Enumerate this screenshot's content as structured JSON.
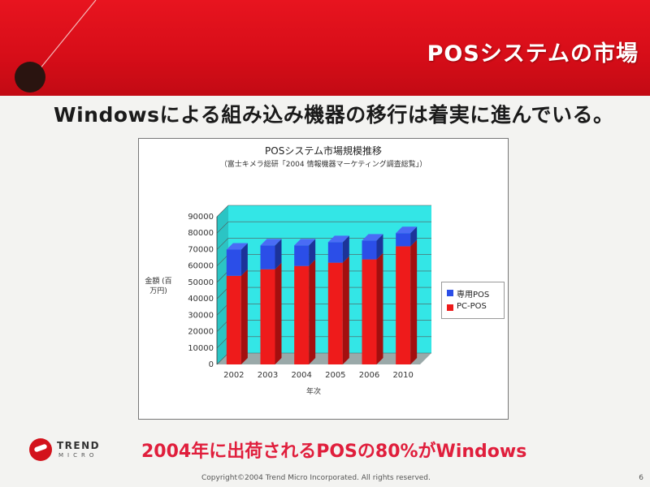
{
  "slide": {
    "title": "POSシステムの市場",
    "subtitle": "Windowsによる組み込み機器の移行は着実に進んでいる。",
    "tagline": "2004年に出荷されるPOSの80%がWindows",
    "copyright": "Copyright©2004 Trend Micro Incorporated. All rights reserved.",
    "page_number": "6",
    "logo": {
      "top": "TREND",
      "bottom": "MICRO"
    }
  },
  "colors": {
    "header_red": "#d60d18",
    "chart_background": "#33e6e6",
    "pc_pos": "#ee1b1b",
    "dedicated_pos": "#2b4ee8",
    "tagline": "#e01e3c"
  },
  "chart_data": {
    "type": "bar",
    "stacked": true,
    "title": "POSシステム市場規模推移",
    "subtitle": "（富士キメラ総研「2004 情報機器マーケティング調査総覧」）",
    "ylabel": "金額 (百万円)",
    "xlabel": "年次",
    "categories": [
      "2002",
      "2003",
      "2004",
      "2005",
      "2006",
      "2010"
    ],
    "ylim": [
      0,
      90000
    ],
    "yticks": [
      0,
      10000,
      20000,
      30000,
      40000,
      50000,
      60000,
      70000,
      80000,
      90000
    ],
    "series": [
      {
        "name": "PC-POS",
        "values": [
          54000,
          58000,
          60000,
          62000,
          64000,
          72000
        ]
      },
      {
        "name": "専用POS",
        "values": [
          16000,
          14500,
          12500,
          12500,
          11500,
          8000
        ]
      }
    ],
    "legend_position": "right",
    "grid": true
  }
}
